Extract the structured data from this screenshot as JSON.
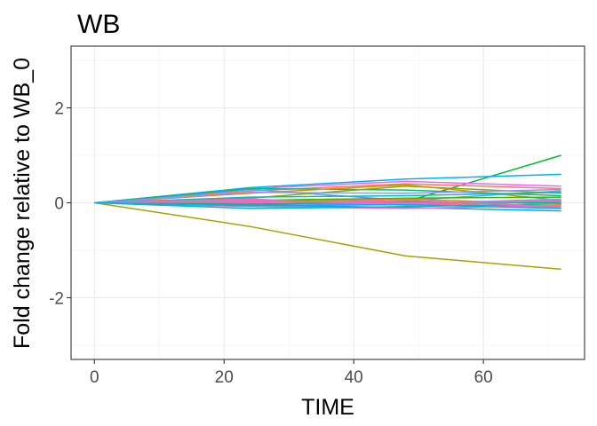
{
  "chart_data": {
    "type": "line",
    "title": "WB",
    "xlabel": "TIME",
    "ylabel": "Fold change relative to WB_0",
    "xlim": [
      -3.6,
      75.6
    ],
    "ylim": [
      -3.3,
      3.3
    ],
    "x_ticks": [
      0,
      20,
      40,
      60
    ],
    "y_ticks": [
      -2,
      0,
      2
    ],
    "x_minor": [
      10,
      30,
      50,
      70
    ],
    "y_minor": [
      -3,
      -1,
      1,
      3
    ],
    "grid": true,
    "legend": "none",
    "x": [
      0,
      24,
      48,
      72
    ],
    "series": [
      {
        "color": "#A3A500",
        "values": [
          0,
          -0.5,
          -1.12,
          -1.4
        ]
      },
      {
        "color": "#00BA38",
        "values": [
          0,
          -0.05,
          0.02,
          1.0
        ]
      },
      {
        "color": "#00B0F6",
        "values": [
          0,
          0.32,
          0.5,
          0.6
        ]
      },
      {
        "color": "#F8766D",
        "values": [
          0,
          0.25,
          0.4,
          0.3
        ]
      },
      {
        "color": "#E76BF3",
        "values": [
          0,
          0.3,
          0.45,
          0.35
        ]
      },
      {
        "color": "#619CFF",
        "values": [
          0,
          0.28,
          0.05,
          0.25
        ]
      },
      {
        "color": "#00BF7D",
        "values": [
          0,
          0.3,
          0.27,
          0.15
        ]
      },
      {
        "color": "#7CAE00",
        "values": [
          0,
          0.1,
          0.35,
          0.2
        ]
      },
      {
        "color": "#D89000",
        "values": [
          0,
          0.2,
          0.38,
          0.05
        ]
      },
      {
        "color": "#9590FF",
        "values": [
          0,
          0.22,
          0.2,
          0.28
        ]
      },
      {
        "color": "#00BFC4",
        "values": [
          0,
          0.12,
          0.15,
          0.22
        ]
      },
      {
        "color": "#39B600",
        "values": [
          0,
          0.05,
          0.1,
          0.12
        ]
      },
      {
        "color": "#FF62BC",
        "values": [
          0,
          0.08,
          -0.05,
          0.02
        ]
      },
      {
        "color": "#F8766D",
        "values": [
          0,
          0.05,
          0.0,
          -0.1
        ]
      },
      {
        "color": "#00A9FF",
        "values": [
          0,
          -0.05,
          -0.1,
          -0.17
        ]
      },
      {
        "color": "#E76BF3",
        "values": [
          0,
          -0.08,
          -0.12,
          -0.05
        ]
      },
      {
        "color": "#00C19A",
        "values": [
          0,
          -0.12,
          -0.08,
          -0.02
        ]
      },
      {
        "color": "#FF62BC",
        "values": [
          0,
          0.0,
          0.05,
          -0.08
        ]
      },
      {
        "color": "#619CFF",
        "values": [
          0,
          -0.02,
          -0.03,
          0.05
        ]
      },
      {
        "color": "#D89000",
        "values": [
          0,
          0.02,
          0.08,
          -0.03
        ]
      },
      {
        "color": "#00BF7D",
        "values": [
          0,
          -0.03,
          0.02,
          0.0
        ]
      },
      {
        "color": "#9590FF",
        "values": [
          0,
          0.04,
          -0.02,
          0.08
        ]
      },
      {
        "color": "#FF62BC",
        "values": [
          0,
          0.03,
          0.0,
          0.03
        ]
      },
      {
        "color": "#00B0F6",
        "values": [
          0,
          -0.06,
          -0.04,
          -0.12
        ]
      }
    ]
  }
}
